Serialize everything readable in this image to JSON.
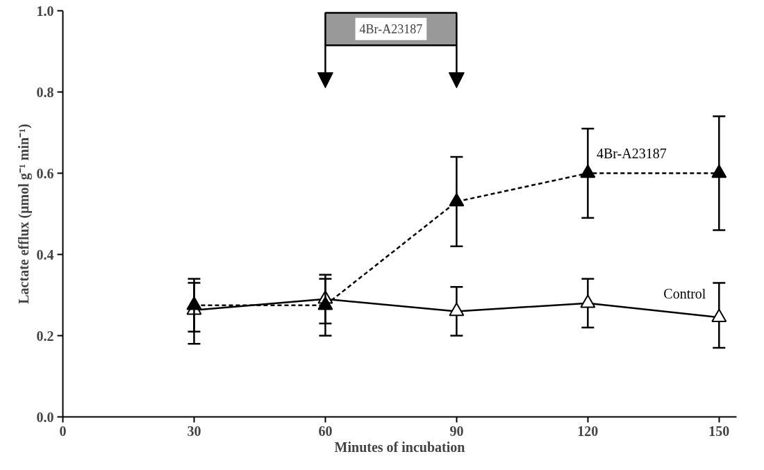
{
  "chart_data": {
    "type": "line",
    "xlabel": "Minutes of incubation",
    "ylabel": "Lactate efflux (μmol g⁻¹ min⁻¹)",
    "x": [
      30,
      60,
      90,
      120,
      150
    ],
    "series": [
      {
        "name": "Control",
        "color": "#000000",
        "line_style": "solid",
        "values": [
          0.263,
          0.29,
          0.26,
          0.28,
          0.245
        ],
        "errors": [
          [
            0.21,
            0.33
          ],
          [
            0.23,
            0.35
          ],
          [
            0.2,
            0.32
          ],
          [
            0.22,
            0.34
          ],
          [
            0.17,
            0.33
          ]
        ]
      },
      {
        "name": "4Br-A23187",
        "color": "#000000",
        "line_style": "dashed",
        "values": [
          0.275,
          0.275,
          0.53,
          0.6,
          0.6
        ],
        "errors": [
          [
            0.18,
            0.34
          ],
          [
            0.2,
            0.34
          ],
          [
            0.42,
            0.64
          ],
          [
            0.49,
            0.71
          ],
          [
            0.46,
            0.74
          ]
        ]
      }
    ],
    "bands": [
      {
        "axis": "x",
        "from": 60,
        "to": 90,
        "label": "4Br-A23187",
        "color": "#999999"
      }
    ],
    "xlim": [
      0,
      154
    ],
    "xticks": [
      0,
      30,
      60,
      90,
      120,
      150
    ],
    "ylim": [
      0,
      1
    ],
    "yticks": [
      {
        "value": 0,
        "label": "0.0"
      },
      0.2,
      0.4,
      0.6,
      0.8,
      {
        "value": 1,
        "label": "1.0"
      }
    ],
    "marker": "triangle",
    "grid": false
  }
}
